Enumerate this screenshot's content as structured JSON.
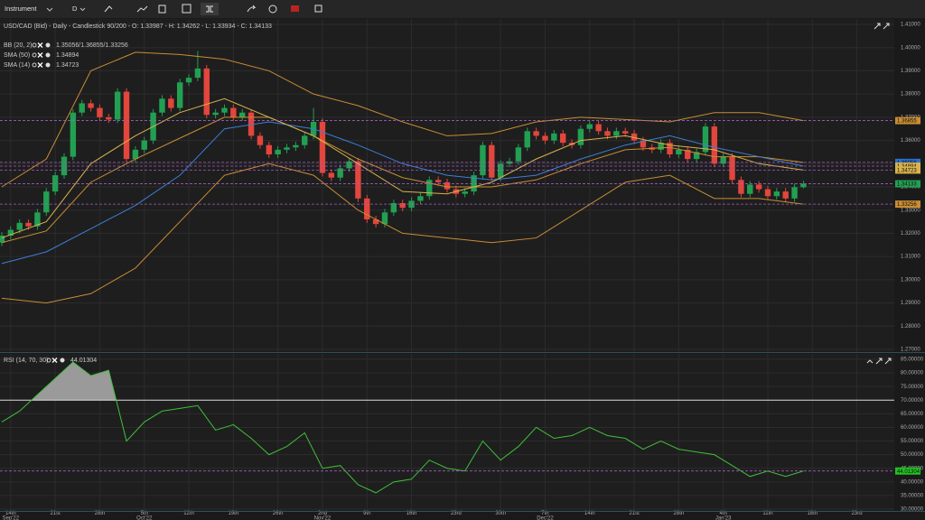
{
  "toolbar": {
    "instrument": "Instrument",
    "timeframe": "D"
  },
  "chart_data": [
    {
      "type": "candlestick",
      "title": "USD/CAD (Bid) - Daily - Candlestick 90/200 - O: 1.33987 - H: 1.34262 - L: 1.33934 - C: 1.34133",
      "up_color": "#22a052",
      "down_color": "#e2463c",
      "open": [
        1.316,
        1.319,
        1.3215,
        1.3245,
        1.323,
        1.329,
        1.338,
        1.345,
        1.353,
        1.372,
        1.376,
        1.374,
        1.37,
        1.369,
        1.381,
        1.352,
        1.356,
        1.36,
        1.372,
        1.378,
        1.374,
        1.385,
        1.387,
        1.391,
        1.371,
        1.372,
        1.374,
        1.37,
        1.372,
        1.362,
        1.358,
        1.354,
        1.356,
        1.357,
        1.358,
        1.362,
        1.368,
        1.346,
        1.344,
        1.348,
        1.351,
        1.335,
        1.326,
        1.324,
        1.329,
        1.333,
        1.331,
        1.334,
        1.336,
        1.343,
        1.342,
        1.339,
        1.337,
        1.338,
        1.345,
        1.358,
        1.344,
        1.35,
        1.351,
        1.357,
        1.364,
        1.362,
        1.36,
        1.363,
        1.359,
        1.358,
        1.365,
        1.367,
        1.364,
        1.362,
        1.364,
        1.363,
        1.36,
        1.357,
        1.356,
        1.359,
        1.354,
        1.356,
        1.352,
        1.355,
        1.366,
        1.35,
        1.353,
        1.343,
        1.337,
        1.341,
        1.339,
        1.336,
        1.338,
        1.335,
        1.33987
      ],
      "high": [
        1.3205,
        1.323,
        1.326,
        1.326,
        1.3305,
        1.3395,
        1.3465,
        1.3545,
        1.3735,
        1.3775,
        1.3775,
        1.3755,
        1.3715,
        1.3825,
        1.3825,
        1.3575,
        1.3615,
        1.3735,
        1.3795,
        1.3795,
        1.3865,
        1.3885,
        1.3985,
        1.3925,
        1.3735,
        1.3755,
        1.3755,
        1.3735,
        1.3735,
        1.3635,
        1.3595,
        1.3575,
        1.3585,
        1.3595,
        1.3635,
        1.374,
        1.3695,
        1.3475,
        1.3495,
        1.3525,
        1.3525,
        1.3365,
        1.3275,
        1.3305,
        1.3345,
        1.3345,
        1.3355,
        1.3375,
        1.3445,
        1.3445,
        1.3435,
        1.3405,
        1.3395,
        1.3465,
        1.3595,
        1.3595,
        1.3515,
        1.3525,
        1.3585,
        1.3655,
        1.3655,
        1.3635,
        1.3645,
        1.3645,
        1.3605,
        1.3665,
        1.3685,
        1.3685,
        1.3655,
        1.3655,
        1.3655,
        1.3645,
        1.3615,
        1.3585,
        1.3605,
        1.3605,
        1.3575,
        1.3575,
        1.3565,
        1.3675,
        1.3675,
        1.3545,
        1.3545,
        1.3445,
        1.3425,
        1.3425,
        1.3405,
        1.3395,
        1.3395,
        1.3414,
        1.34262
      ],
      "low": [
        1.3145,
        1.3175,
        1.32,
        1.3215,
        1.3215,
        1.3275,
        1.3365,
        1.3435,
        1.3515,
        1.3705,
        1.3725,
        1.3685,
        1.3675,
        1.3675,
        1.3505,
        1.3505,
        1.3545,
        1.3585,
        1.3705,
        1.3725,
        1.3725,
        1.3835,
        1.3855,
        1.3695,
        1.3695,
        1.3705,
        1.3685,
        1.3685,
        1.3605,
        1.3565,
        1.3525,
        1.3525,
        1.3545,
        1.3555,
        1.3565,
        1.3605,
        1.3445,
        1.3425,
        1.3425,
        1.3465,
        1.3335,
        1.3245,
        1.3225,
        1.3225,
        1.3275,
        1.3295,
        1.3295,
        1.3325,
        1.3345,
        1.3405,
        1.3375,
        1.3355,
        1.3355,
        1.3365,
        1.3435,
        1.3425,
        1.3425,
        1.3485,
        1.3495,
        1.3555,
        1.3605,
        1.3585,
        1.3585,
        1.3575,
        1.3565,
        1.3565,
        1.3635,
        1.3625,
        1.3605,
        1.3605,
        1.3615,
        1.3585,
        1.3555,
        1.3545,
        1.3545,
        1.3525,
        1.3525,
        1.3505,
        1.3505,
        1.3535,
        1.3485,
        1.3485,
        1.3415,
        1.3355,
        1.3355,
        1.3375,
        1.3345,
        1.3345,
        1.3335,
        1.3335,
        1.33934
      ],
      "close": [
        1.319,
        1.3215,
        1.3245,
        1.323,
        1.329,
        1.338,
        1.345,
        1.353,
        1.372,
        1.376,
        1.374,
        1.37,
        1.369,
        1.381,
        1.352,
        1.356,
        1.36,
        1.372,
        1.378,
        1.374,
        1.385,
        1.387,
        1.391,
        1.371,
        1.372,
        1.374,
        1.37,
        1.372,
        1.362,
        1.358,
        1.354,
        1.356,
        1.357,
        1.358,
        1.362,
        1.368,
        1.346,
        1.344,
        1.348,
        1.351,
        1.335,
        1.326,
        1.324,
        1.329,
        1.333,
        1.331,
        1.334,
        1.336,
        1.343,
        1.342,
        1.339,
        1.337,
        1.338,
        1.345,
        1.358,
        1.344,
        1.35,
        1.351,
        1.357,
        1.364,
        1.362,
        1.36,
        1.363,
        1.359,
        1.358,
        1.365,
        1.367,
        1.364,
        1.362,
        1.364,
        1.363,
        1.36,
        1.357,
        1.356,
        1.359,
        1.354,
        1.356,
        1.352,
        1.355,
        1.366,
        1.35,
        1.353,
        1.343,
        1.337,
        1.341,
        1.339,
        1.336,
        1.338,
        1.335,
        1.33987,
        1.34133
      ],
      "xlim": [
        -0.2,
        100.2
      ],
      "ylim": [
        1.27,
        1.41
      ],
      "yticks": [
        {
          "value": 1.41,
          "label": "1.41000"
        },
        {
          "value": 1.4,
          "label": "1.40000"
        },
        {
          "value": 1.39,
          "label": "1.39000"
        },
        {
          "value": 1.38,
          "label": "1.38000"
        },
        {
          "value": 1.37,
          "label": "1.37000"
        },
        {
          "value": 1.36,
          "label": "1.36000"
        },
        {
          "value": 1.35,
          "label": "1.35000"
        },
        {
          "value": 1.34,
          "label": "1.34000"
        },
        {
          "value": 1.33,
          "label": "1.33000"
        },
        {
          "value": 1.32,
          "label": "1.32000"
        },
        {
          "value": 1.31,
          "label": "1.31000"
        },
        {
          "value": 1.3,
          "label": "1.30000"
        },
        {
          "value": 1.29,
          "label": "1.29000"
        },
        {
          "value": 1.28,
          "label": "1.28000"
        },
        {
          "value": 1.27,
          "label": "1.27000"
        }
      ],
      "grid": true,
      "overlay_x": [
        0,
        5,
        10,
        15,
        20,
        25,
        30,
        35,
        40,
        45,
        50,
        55,
        60,
        65,
        70,
        75,
        80,
        85,
        90
      ],
      "overlays": [
        {
          "name": "BB (20, 2)",
          "legend_value": "1.35056/1.36855/1.33256",
          "color": "#c98d33",
          "upper": [
            1.34,
            1.352,
            1.39,
            1.398,
            1.397,
            1.395,
            1.39,
            1.38,
            1.375,
            1.368,
            1.362,
            1.363,
            1.368,
            1.37,
            1.369,
            1.368,
            1.372,
            1.372,
            1.36855
          ],
          "middle": [
            1.316,
            1.321,
            1.342,
            1.352,
            1.361,
            1.37,
            1.37,
            1.362,
            1.352,
            1.344,
            1.34,
            1.34,
            1.343,
            1.35,
            1.356,
            1.357,
            1.353,
            1.353,
            1.35056
          ],
          "lower": [
            1.292,
            1.29,
            1.294,
            1.305,
            1.325,
            1.345,
            1.35,
            1.345,
            1.33,
            1.32,
            1.318,
            1.316,
            1.318,
            1.33,
            1.342,
            1.345,
            1.335,
            1.335,
            1.33256
          ]
        },
        {
          "name": "SMA (50)",
          "legend_value": 1.34894,
          "color": "#3b7fd8",
          "values": [
            1.307,
            1.312,
            1.322,
            1.332,
            1.345,
            1.365,
            1.368,
            1.365,
            1.358,
            1.35,
            1.345,
            1.343,
            1.345,
            1.352,
            1.358,
            1.362,
            1.357,
            1.353,
            1.34894
          ]
        },
        {
          "name": "SMA (14)",
          "legend_value": 1.34723,
          "color": "#d8b24c",
          "values": [
            1.318,
            1.325,
            1.35,
            1.362,
            1.372,
            1.378,
            1.37,
            1.362,
            1.35,
            1.338,
            1.337,
            1.342,
            1.352,
            1.36,
            1.362,
            1.358,
            1.356,
            1.35,
            1.34723
          ]
        }
      ],
      "price_markers": [
        {
          "value": 1.36855,
          "color": "#c98d33"
        },
        {
          "value": 1.35056,
          "color": "#2f6fd0"
        },
        {
          "value": 1.34894,
          "color": "#d8b24c"
        },
        {
          "value": 1.34723,
          "color": "#d8b24c"
        },
        {
          "value": 1.34133,
          "color": "#22a052"
        },
        {
          "value": 1.33256,
          "color": "#c98d33"
        }
      ]
    },
    {
      "type": "line",
      "title": "RSI (14, 70, 30)",
      "legend_value": 44.01304,
      "color": "#3fbf3a",
      "x": [
        0,
        2,
        4,
        6,
        8,
        10,
        12,
        14,
        16,
        18,
        20,
        22,
        24,
        26,
        28,
        30,
        32,
        34,
        36,
        38,
        40,
        42,
        44,
        46,
        48,
        50,
        52,
        54,
        56,
        58,
        60,
        62,
        64,
        66,
        68,
        70,
        72,
        74,
        76,
        78,
        80,
        82,
        84,
        86,
        88,
        90
      ],
      "values": [
        62,
        66,
        72,
        78,
        84,
        79,
        81,
        55,
        62,
        66,
        67,
        68,
        59,
        61,
        56,
        50,
        53,
        58,
        45,
        46,
        39,
        36,
        40,
        41,
        48,
        45,
        44,
        55,
        48,
        53,
        60,
        56,
        57,
        60,
        57,
        56,
        52,
        55,
        52,
        51,
        50,
        46,
        42,
        44,
        42,
        44.01304
      ],
      "levels": [
        70
      ],
      "xlim": [
        -0.2,
        100.2
      ],
      "ylim": [
        30,
        85
      ],
      "yticks": [
        {
          "value": 85,
          "label": "85.00000"
        },
        {
          "value": 80,
          "label": "80.00000"
        },
        {
          "value": 75,
          "label": "75.00000"
        },
        {
          "value": 70,
          "label": "70.00000"
        },
        {
          "value": 65,
          "label": "65.00000"
        },
        {
          "value": 60,
          "label": "60.00000"
        },
        {
          "value": 55,
          "label": "55.00000"
        },
        {
          "value": 50,
          "label": "50.00000"
        },
        {
          "value": 45,
          "label": "45.00000"
        },
        {
          "value": 40,
          "label": "40.00000"
        },
        {
          "value": 35,
          "label": "35.00000"
        },
        {
          "value": 30,
          "label": "30.00000"
        }
      ],
      "xticks": [
        {
          "value": 1,
          "label": "14th"
        },
        {
          "value": 6,
          "label": "21st"
        },
        {
          "value": 11,
          "label": "28th"
        },
        {
          "value": 16,
          "label": "5th"
        },
        {
          "value": 21,
          "label": "12th"
        },
        {
          "value": 26,
          "label": "19th"
        },
        {
          "value": 31,
          "label": "26th"
        },
        {
          "value": 36,
          "label": "2nd"
        },
        {
          "value": 41,
          "label": "9th"
        },
        {
          "value": 46,
          "label": "16th"
        },
        {
          "value": 51,
          "label": "23rd"
        },
        {
          "value": 56,
          "label": "30th"
        },
        {
          "value": 61,
          "label": "7th"
        },
        {
          "value": 66,
          "label": "14th"
        },
        {
          "value": 71,
          "label": "21st"
        },
        {
          "value": 76,
          "label": "28th"
        },
        {
          "value": 81,
          "label": "4th"
        },
        {
          "value": 86,
          "label": "11th"
        },
        {
          "value": 91,
          "label": "18th"
        },
        {
          "value": 96,
          "label": "23rd"
        }
      ],
      "xticks_secondary": [
        {
          "value": 1,
          "label": "Sep'22"
        },
        {
          "value": 16,
          "label": "Oct'22"
        },
        {
          "value": 36,
          "label": "Nov'22"
        },
        {
          "value": 61,
          "label": "Dec'22"
        },
        {
          "value": 81,
          "label": "Jan'23"
        }
      ],
      "grid": true,
      "price_markers": [
        {
          "value": 44.01304,
          "color": "#22c022"
        }
      ]
    }
  ]
}
